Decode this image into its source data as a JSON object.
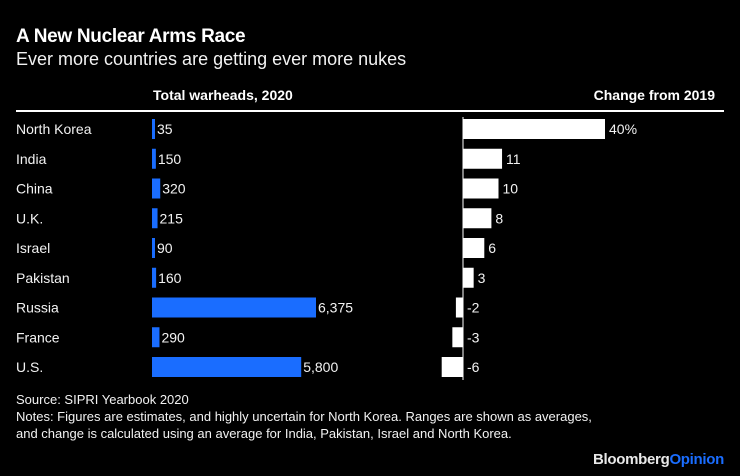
{
  "header": {
    "title": "A New Nuclear Arms Race",
    "subtitle": "Ever more countries are getting ever more nukes"
  },
  "chart_data": {
    "type": "bar",
    "orientation": "horizontal",
    "title": "A New Nuclear Arms Race",
    "subtitle": "Ever more countries are getting ever more nukes",
    "categories": [
      "North Korea",
      "India",
      "China",
      "U.K.",
      "Israel",
      "Pakistan",
      "Russia",
      "France",
      "U.S."
    ],
    "panels": [
      {
        "name": "Total warheads, 2020",
        "values": [
          35,
          150,
          320,
          215,
          90,
          160,
          6375,
          290,
          5800
        ],
        "labels": [
          "35",
          "150",
          "320",
          "215",
          "90",
          "160",
          "6,375",
          "290",
          "5,800"
        ],
        "color": "#1a6dff",
        "xlim": [
          0,
          6375
        ]
      },
      {
        "name": "Change from 2019",
        "values": [
          40,
          11,
          10,
          8,
          6,
          3,
          -2,
          -3,
          -6
        ],
        "labels": [
          "40%",
          "11",
          "10",
          "8",
          "6",
          "3",
          "-2",
          "-3",
          "-6"
        ],
        "unit": "%",
        "color": "#ffffff",
        "xlim": [
          -6,
          40
        ],
        "zero_axis": true
      }
    ],
    "legend": "none",
    "grid": false
  },
  "footer": {
    "source": "Source: SIPRI Yearbook 2020",
    "notes": "Notes: Figures are estimates, and highly uncertain for North Korea. Ranges are shown as averages, and change is calculated using an average for India, Pakistan, Israel and North Korea."
  },
  "brand": {
    "part1": "Bloomberg",
    "part2": "Opinion",
    "accent": "#1a6dff"
  }
}
